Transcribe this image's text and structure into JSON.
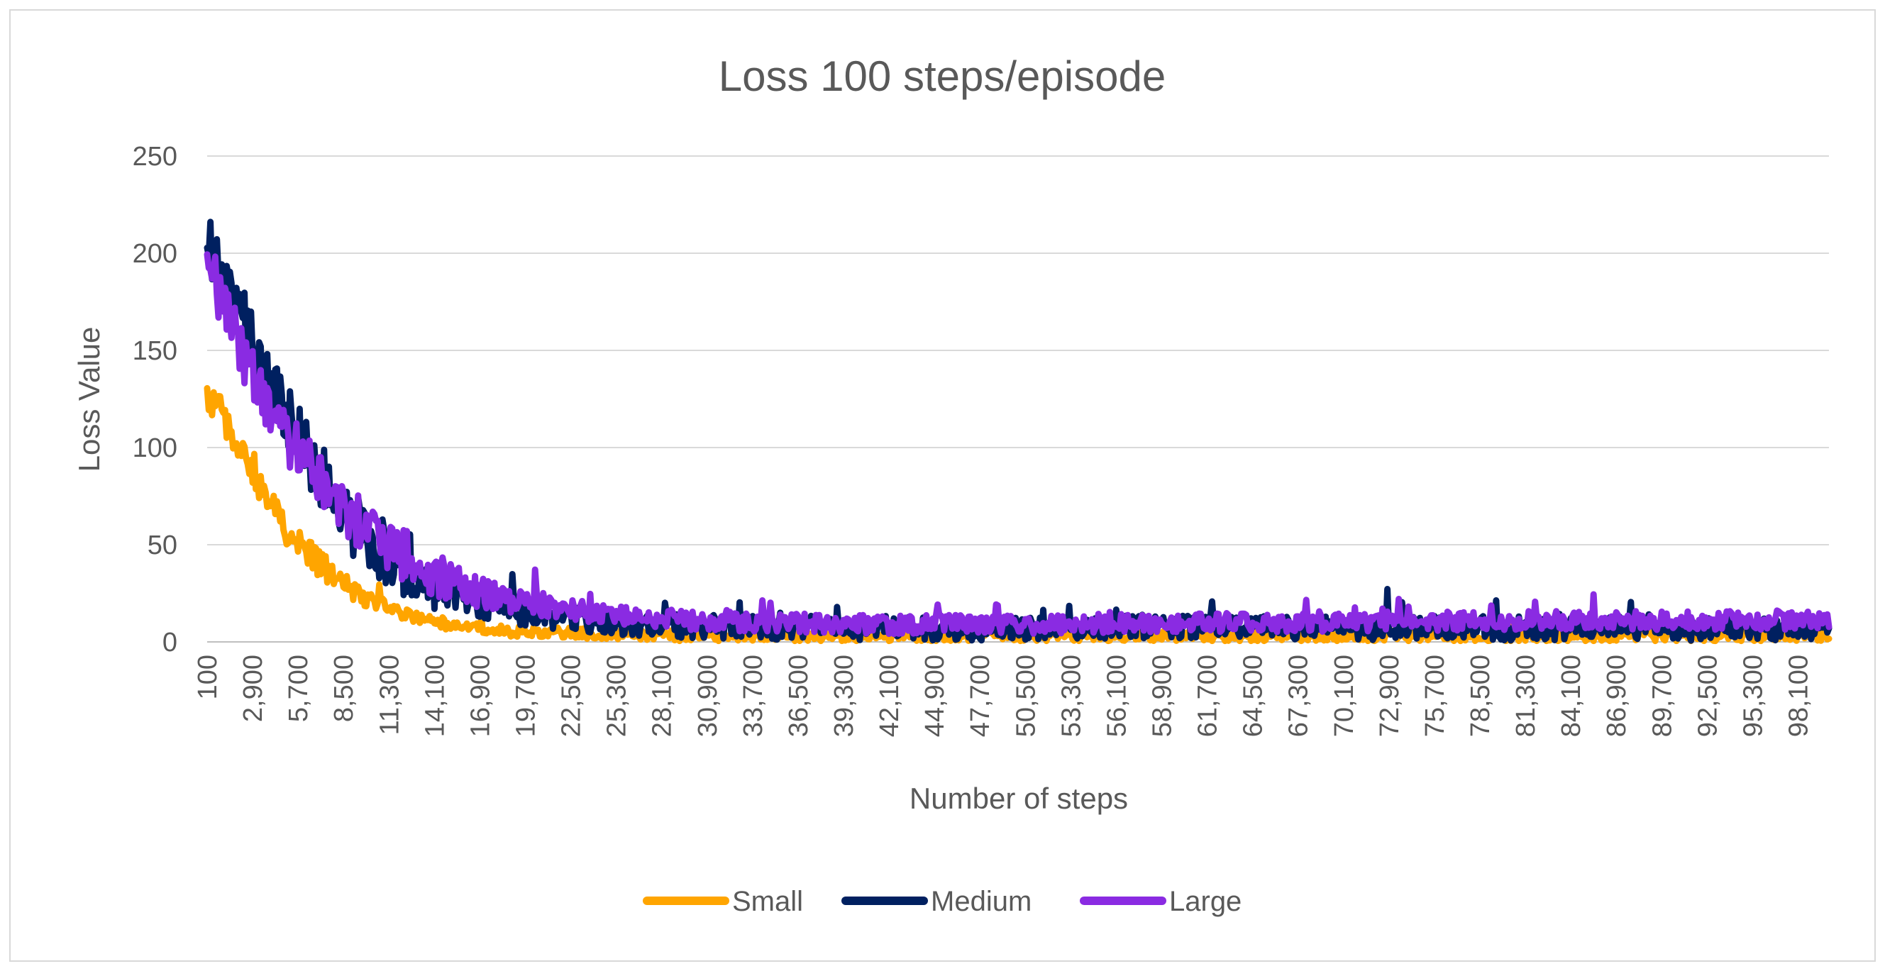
{
  "chart_data": {
    "type": "line",
    "title": "Loss 100 steps/episode",
    "xlabel": "Number of steps",
    "ylabel": "Loss Value",
    "ylim": [
      0,
      250
    ],
    "yticks": [
      "0",
      "50",
      "100",
      "150",
      "200",
      "250"
    ],
    "x_range": [
      100,
      100000
    ],
    "x_step": 100,
    "x_tick_labels": [
      "100",
      "2,900",
      "5,700",
      "8,500",
      "11,300",
      "14,100",
      "16,900",
      "19,700",
      "22,500",
      "25,300",
      "28,100",
      "30,900",
      "33,700",
      "36,500",
      "39,300",
      "42,100",
      "44,900",
      "47,700",
      "50,500",
      "53,300",
      "56,100",
      "58,900",
      "61,700",
      "64,500",
      "67,300",
      "70,100",
      "72,900",
      "75,700",
      "78,500",
      "81,300",
      "84,100",
      "86,900",
      "89,700",
      "92,500",
      "95,300",
      "98,100"
    ],
    "grid": true,
    "legend_position": "bottom",
    "series": [
      {
        "name": "Small",
        "color": "#FFA500",
        "x": [
          100,
          1000,
          2000,
          3000,
          4000,
          5000,
          6000,
          7000,
          8000,
          9000,
          10000,
          12000,
          14000,
          16000,
          18000,
          20000,
          25000,
          30000,
          40000,
          50000,
          60000,
          70000,
          80000,
          90000,
          100000
        ],
        "values": [
          125,
          118,
          100,
          85,
          70,
          58,
          48,
          40,
          33,
          27,
          22,
          15,
          10,
          8,
          6,
          5,
          4,
          3,
          3,
          3,
          3,
          3,
          3,
          3,
          3
        ],
        "noise": 8
      },
      {
        "name": "Medium",
        "color": "#002060",
        "x": [
          100,
          500,
          1000,
          2000,
          3000,
          4000,
          5000,
          6000,
          7000,
          8000,
          9000,
          10000,
          12000,
          14000,
          16000,
          18000,
          20000,
          25000,
          30000,
          40000,
          50000,
          60000,
          70000,
          80000,
          90000,
          100000
        ],
        "values": [
          215,
          200,
          190,
          170,
          150,
          130,
          115,
          100,
          88,
          75,
          62,
          55,
          42,
          30,
          22,
          18,
          14,
          10,
          8,
          7,
          7,
          8,
          7,
          7,
          7,
          7
        ],
        "noise": 18
      },
      {
        "name": "Large",
        "color": "#8A2BE2",
        "x": [
          100,
          500,
          1000,
          2000,
          3000,
          4000,
          5000,
          6000,
          7000,
          8000,
          9000,
          10000,
          12000,
          14000,
          16000,
          18000,
          20000,
          25000,
          30000,
          40000,
          50000,
          60000,
          70000,
          80000,
          90000,
          100000
        ],
        "values": [
          200,
          188,
          175,
          155,
          135,
          120,
          105,
          95,
          85,
          75,
          65,
          58,
          45,
          35,
          28,
          24,
          20,
          14,
          11,
          9,
          9,
          10,
          10,
          11,
          11,
          11
        ],
        "noise": 14
      }
    ]
  }
}
